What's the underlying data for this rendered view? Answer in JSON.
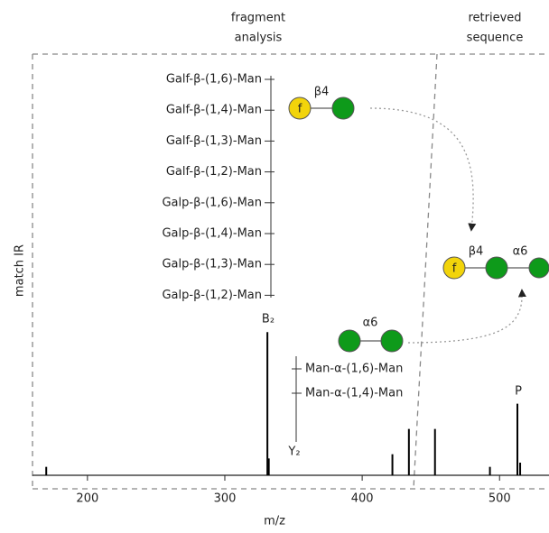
{
  "chart_data": {
    "type": "stem",
    "xlabel": "m/z",
    "ylabel": "match IR",
    "xlim": [
      160,
      536
    ],
    "ylim": [
      0,
      100
    ],
    "xticks": [
      200,
      300,
      400,
      500
    ],
    "x": [
      170,
      331,
      332,
      422,
      434,
      453,
      493,
      513,
      515
    ],
    "values": [
      2,
      34,
      4,
      5,
      11,
      11,
      2,
      17,
      3
    ],
    "color": "#000000",
    "panel_titles": [
      [
        "fragment",
        "analysis"
      ],
      [
        "retrieved",
        "sequence"
      ]
    ],
    "peak_labels": [
      "B₂",
      "Y₂",
      "P"
    ],
    "fragments": [
      {
        "label": "Galf-β-(1,6)-Man",
        "color": "#e8283c"
      },
      {
        "label": "Galf-β-(1,4)-Man",
        "color": "#2ec02e"
      },
      {
        "label": "Galf-β-(1,3)-Man",
        "color": "#e8283c"
      },
      {
        "label": "Galf-β-(1,2)-Man",
        "color": "#e8283c"
      },
      {
        "label": "Galp-β-(1,6)-Man",
        "color": "#e8283c"
      },
      {
        "label": "Galp-β-(1,4)-Man",
        "color": "#e8283c"
      },
      {
        "label": "Galp-β-(1,3)-Man",
        "color": "#e8283c"
      },
      {
        "label": "Galp-β-(1,2)-Man",
        "color": "#e8283c"
      }
    ],
    "linkages": [
      {
        "label": "Man-α-(1,6)-Man",
        "color": "#2ec02e"
      },
      {
        "label": "Man-α-(1,4)-Man",
        "color": "#e8283c"
      }
    ],
    "glyph_labels": {
      "galf": "f",
      "beta4": "β4",
      "alpha6": "α6"
    }
  }
}
